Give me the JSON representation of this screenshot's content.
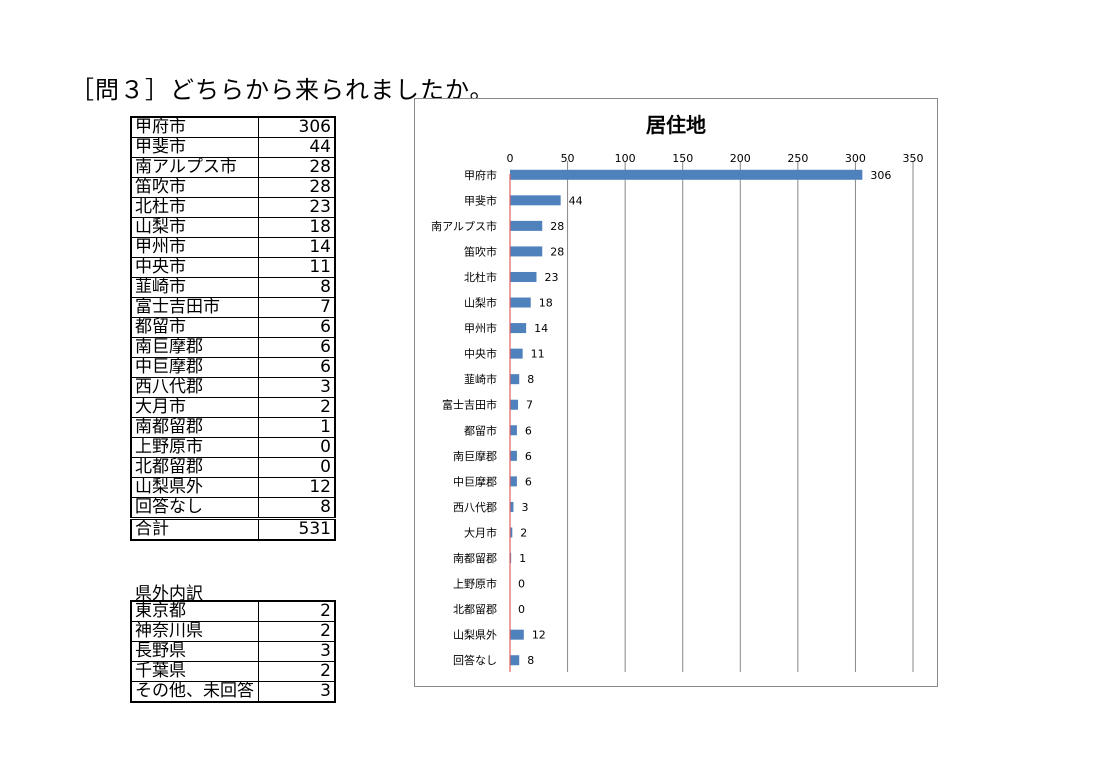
{
  "question": "［問３］どちらから来られましたか。",
  "table": {
    "rows": [
      {
        "name": "甲府市",
        "value": "306"
      },
      {
        "name": "甲斐市",
        "value": "44"
      },
      {
        "name": "南アルプス市",
        "value": "28"
      },
      {
        "name": "笛吹市",
        "value": "28"
      },
      {
        "name": "北杜市",
        "value": "23"
      },
      {
        "name": "山梨市",
        "value": "18"
      },
      {
        "name": "甲州市",
        "value": "14"
      },
      {
        "name": "中央市",
        "value": "11"
      },
      {
        "name": "韮崎市",
        "value": "8"
      },
      {
        "name": "富士吉田市",
        "value": "7"
      },
      {
        "name": "都留市",
        "value": "6"
      },
      {
        "name": "南巨摩郡",
        "value": "6"
      },
      {
        "name": "中巨摩郡",
        "value": "6"
      },
      {
        "name": "西八代郡",
        "value": "3"
      },
      {
        "name": "大月市",
        "value": "2"
      },
      {
        "name": "南都留郡",
        "value": "1"
      },
      {
        "name": "上野原市",
        "value": "0"
      },
      {
        "name": "北都留郡",
        "value": "0"
      },
      {
        "name": "山梨県外",
        "value": "12"
      },
      {
        "name": "回答なし",
        "value": "8"
      }
    ],
    "total_label": "合計",
    "total_value": "531"
  },
  "out_of_pref": {
    "caption": "県外内訳",
    "rows": [
      {
        "name": "東京都",
        "value": "2"
      },
      {
        "name": "神奈川県",
        "value": "2"
      },
      {
        "name": "長野県",
        "value": "3"
      },
      {
        "name": "千葉県",
        "value": "2"
      },
      {
        "name": "その他、未回答",
        "value": "3"
      }
    ]
  },
  "chart_data": {
    "type": "bar",
    "orientation": "horizontal",
    "title": "居住地",
    "categories": [
      "甲府市",
      "甲斐市",
      "南アルプス市",
      "笛吹市",
      "北杜市",
      "山梨市",
      "甲州市",
      "中央市",
      "韮崎市",
      "富士吉田市",
      "都留市",
      "南巨摩郡",
      "中巨摩郡",
      "西八代郡",
      "大月市",
      "南都留郡",
      "上野原市",
      "北都留郡",
      "山梨県外",
      "回答なし"
    ],
    "values": [
      306,
      44,
      28,
      28,
      23,
      18,
      14,
      11,
      8,
      7,
      6,
      6,
      6,
      3,
      2,
      1,
      0,
      0,
      12,
      8
    ],
    "xlim": [
      0,
      350
    ],
    "xticks": [
      0,
      50,
      100,
      150,
      200,
      250,
      300,
      350
    ],
    "grid": true,
    "data_labels": true,
    "legend": "none",
    "bar_color": "#4F81BD",
    "zero_axis_color": "#e06060"
  }
}
